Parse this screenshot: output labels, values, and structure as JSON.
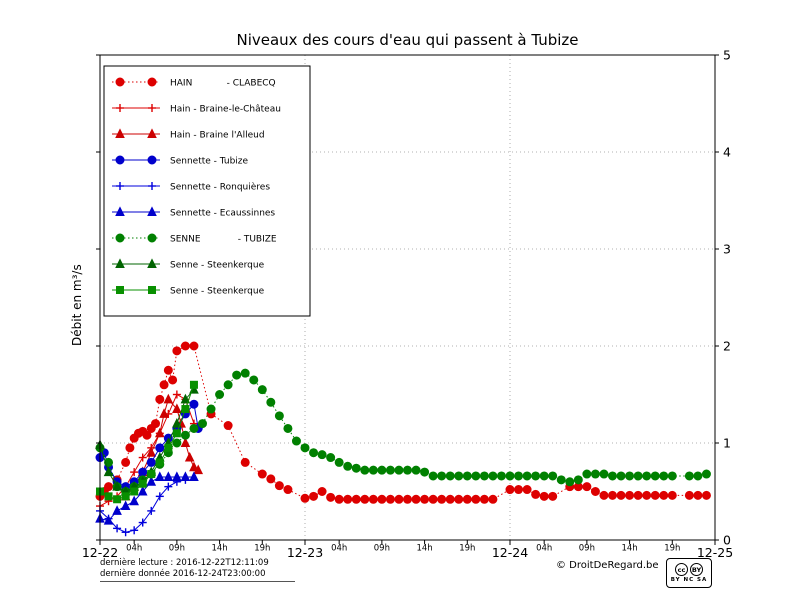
{
  "title": "Niveaux des cours d'eau qui passent à Tubize",
  "ylabel": "Débit en m³/s",
  "footer": {
    "last_read": "dernière lecture : 2016-12-22T12:11:09",
    "last_data": "dernière donnée  2016-12-24T23:00:00",
    "copyright": "© DroitDeRegard.be",
    "license": "CC BY-NC-SA",
    "license_cc": "cc",
    "license_by": "BY",
    "license_bottom": "BY NC SA"
  },
  "chart_data": {
    "type": "line",
    "title": "Niveaux des cours d'eau qui passent à Tubize",
    "xlabel": "",
    "ylabel": "Débit en m³/s",
    "x_unit": "hours since 2016-12-22 00:00",
    "xlim": [
      0,
      72
    ],
    "ylim": [
      0,
      5
    ],
    "grid": "dotted",
    "legend_position": "upper-left",
    "xgrid": [
      24,
      48
    ],
    "ygrid": [
      1,
      2,
      3,
      4
    ],
    "y_ticks": [
      {
        "v": 0,
        "label": "0"
      },
      {
        "v": 1,
        "label": "1"
      },
      {
        "v": 2,
        "label": "2"
      },
      {
        "v": 3,
        "label": "3"
      },
      {
        "v": 4,
        "label": "4"
      },
      {
        "v": 5,
        "label": "5"
      }
    ],
    "x_ticks": [
      {
        "t": 0,
        "label": "12-22",
        "major": true
      },
      {
        "t": 4,
        "label": "04h",
        "major": false
      },
      {
        "t": 9,
        "label": "09h",
        "major": false
      },
      {
        "t": 14,
        "label": "14h",
        "major": false
      },
      {
        "t": 19,
        "label": "19h",
        "major": false
      },
      {
        "t": 24,
        "label": "12-23",
        "major": true
      },
      {
        "t": 28,
        "label": "04h",
        "major": false
      },
      {
        "t": 33,
        "label": "09h",
        "major": false
      },
      {
        "t": 38,
        "label": "14h",
        "major": false
      },
      {
        "t": 43,
        "label": "19h",
        "major": false
      },
      {
        "t": 48,
        "label": "12-24",
        "major": true
      },
      {
        "t": 52,
        "label": "04h",
        "major": false
      },
      {
        "t": 57,
        "label": "09h",
        "major": false
      },
      {
        "t": 62,
        "label": "14h",
        "major": false
      },
      {
        "t": 67,
        "label": "19h",
        "major": false
      },
      {
        "t": 72,
        "label": "12-25",
        "major": true
      }
    ],
    "series": [
      {
        "name": "HAIN            - CLABECQ",
        "color": "#dd0000",
        "marker": "circle",
        "line": "dotted",
        "points": [
          [
            0,
            0.45
          ],
          [
            0.5,
            0.5
          ],
          [
            1,
            0.55
          ],
          [
            2,
            0.62
          ],
          [
            3,
            0.8
          ],
          [
            3.5,
            0.95
          ],
          [
            4,
            1.05
          ],
          [
            4.5,
            1.1
          ],
          [
            5,
            1.12
          ],
          [
            5.5,
            1.08
          ],
          [
            6,
            1.15
          ],
          [
            6.5,
            1.2
          ],
          [
            7,
            1.45
          ],
          [
            7.5,
            1.6
          ],
          [
            8,
            1.75
          ],
          [
            8.5,
            1.65
          ],
          [
            9,
            1.95
          ],
          [
            10,
            2.0
          ],
          [
            11,
            2.0
          ],
          [
            13,
            1.3
          ],
          [
            15,
            1.18
          ],
          [
            17,
            0.8
          ],
          [
            19,
            0.68
          ],
          [
            20,
            0.63
          ],
          [
            21,
            0.56
          ],
          [
            22,
            0.52
          ],
          [
            24,
            0.43
          ],
          [
            25,
            0.45
          ],
          [
            26,
            0.5
          ],
          [
            27,
            0.44
          ],
          [
            28,
            0.42
          ],
          [
            29,
            0.42
          ],
          [
            30,
            0.42
          ],
          [
            31,
            0.42
          ],
          [
            32,
            0.42
          ],
          [
            33,
            0.42
          ],
          [
            34,
            0.42
          ],
          [
            35,
            0.42
          ],
          [
            36,
            0.42
          ],
          [
            37,
            0.42
          ],
          [
            38,
            0.42
          ],
          [
            39,
            0.42
          ],
          [
            40,
            0.42
          ],
          [
            41,
            0.42
          ],
          [
            42,
            0.42
          ],
          [
            43,
            0.42
          ],
          [
            44,
            0.42
          ],
          [
            45,
            0.42
          ],
          [
            46,
            0.42
          ],
          [
            48,
            0.52
          ],
          [
            49,
            0.52
          ],
          [
            50,
            0.52
          ],
          [
            51,
            0.47
          ],
          [
            52,
            0.45
          ],
          [
            53,
            0.45
          ],
          [
            55,
            0.55
          ],
          [
            56,
            0.55
          ],
          [
            57,
            0.55
          ],
          [
            58,
            0.5
          ],
          [
            59,
            0.46
          ],
          [
            60,
            0.46
          ],
          [
            61,
            0.46
          ],
          [
            62,
            0.46
          ],
          [
            63,
            0.46
          ],
          [
            64,
            0.46
          ],
          [
            65,
            0.46
          ],
          [
            66,
            0.46
          ],
          [
            67,
            0.46
          ],
          [
            69,
            0.46
          ],
          [
            70,
            0.46
          ],
          [
            71,
            0.46
          ]
        ]
      },
      {
        "name": "Hain - Braine-le-Château",
        "color": "#dd0000",
        "marker": "plus",
        "line": "solid",
        "points": [
          [
            0,
            0.35
          ],
          [
            1,
            0.4
          ],
          [
            2,
            0.45
          ],
          [
            3,
            0.55
          ],
          [
            4,
            0.7
          ],
          [
            5,
            0.85
          ],
          [
            6,
            0.95
          ],
          [
            7,
            1.1
          ],
          [
            8,
            1.3
          ],
          [
            9,
            1.5
          ],
          [
            10,
            1.45
          ],
          [
            11,
            1.2
          ]
        ]
      },
      {
        "name": "Hain - Braine l'Alleud",
        "color": "#cc0000",
        "marker": "triangle",
        "line": "solid",
        "points": [
          [
            3,
            0.45
          ],
          [
            4,
            0.55
          ],
          [
            5,
            0.7
          ],
          [
            6,
            0.9
          ],
          [
            7,
            1.1
          ],
          [
            7.5,
            1.3
          ],
          [
            8,
            1.45
          ],
          [
            9,
            1.35
          ],
          [
            9.5,
            1.2
          ],
          [
            10,
            1.0
          ],
          [
            10.5,
            0.85
          ],
          [
            11,
            0.75
          ],
          [
            11.5,
            0.72
          ]
        ]
      },
      {
        "name": "Sennette - Tubize",
        "color": "#0000cc",
        "marker": "circle",
        "line": "solid",
        "points": [
          [
            0,
            0.85
          ],
          [
            0.5,
            0.9
          ],
          [
            1,
            0.75
          ],
          [
            2,
            0.6
          ],
          [
            3,
            0.55
          ],
          [
            4,
            0.6
          ],
          [
            5,
            0.7
          ],
          [
            6,
            0.8
          ],
          [
            7,
            0.95
          ],
          [
            8,
            1.05
          ],
          [
            9,
            1.15
          ],
          [
            10,
            1.3
          ],
          [
            11,
            1.4
          ],
          [
            11.5,
            1.15
          ]
        ]
      },
      {
        "name": "Sennette - Ronquières",
        "color": "#0000dd",
        "marker": "plus",
        "line": "solid",
        "points": [
          [
            0,
            0.3
          ],
          [
            1,
            0.22
          ],
          [
            2,
            0.12
          ],
          [
            3,
            0.08
          ],
          [
            4,
            0.1
          ],
          [
            5,
            0.18
          ],
          [
            6,
            0.3
          ],
          [
            7,
            0.45
          ],
          [
            8,
            0.55
          ],
          [
            9,
            0.6
          ],
          [
            10,
            0.62
          ]
        ]
      },
      {
        "name": "Sennette - Ecaussinnes",
        "color": "#0000cc",
        "marker": "triangle",
        "line": "solid",
        "points": [
          [
            0,
            0.22
          ],
          [
            1,
            0.2
          ],
          [
            2,
            0.3
          ],
          [
            3,
            0.35
          ],
          [
            4,
            0.4
          ],
          [
            5,
            0.5
          ],
          [
            6,
            0.6
          ],
          [
            7,
            0.65
          ],
          [
            8,
            0.65
          ],
          [
            9,
            0.65
          ],
          [
            10,
            0.65
          ],
          [
            11,
            0.65
          ]
        ]
      },
      {
        "name": "SENNE             - TUBIZE",
        "color": "#008000",
        "marker": "circle",
        "line": "dotted",
        "points": [
          [
            0,
            0.95
          ],
          [
            1,
            0.8
          ],
          [
            2,
            0.55
          ],
          [
            3,
            0.5
          ],
          [
            4,
            0.55
          ],
          [
            5,
            0.62
          ],
          [
            6,
            0.68
          ],
          [
            7,
            0.78
          ],
          [
            8,
            0.9
          ],
          [
            9,
            1.0
          ],
          [
            10,
            1.08
          ],
          [
            11,
            1.15
          ],
          [
            12,
            1.2
          ],
          [
            13,
            1.35
          ],
          [
            14,
            1.5
          ],
          [
            15,
            1.6
          ],
          [
            16,
            1.7
          ],
          [
            17,
            1.72
          ],
          [
            18,
            1.65
          ],
          [
            19,
            1.55
          ],
          [
            20,
            1.42
          ],
          [
            21,
            1.28
          ],
          [
            22,
            1.15
          ],
          [
            23,
            1.02
          ],
          [
            24,
            0.95
          ],
          [
            25,
            0.9
          ],
          [
            26,
            0.88
          ],
          [
            27,
            0.85
          ],
          [
            28,
            0.8
          ],
          [
            29,
            0.76
          ],
          [
            30,
            0.74
          ],
          [
            31,
            0.72
          ],
          [
            32,
            0.72
          ],
          [
            33,
            0.72
          ],
          [
            34,
            0.72
          ],
          [
            35,
            0.72
          ],
          [
            36,
            0.72
          ],
          [
            37,
            0.72
          ],
          [
            38,
            0.7
          ],
          [
            39,
            0.66
          ],
          [
            40,
            0.66
          ],
          [
            41,
            0.66
          ],
          [
            42,
            0.66
          ],
          [
            43,
            0.66
          ],
          [
            44,
            0.66
          ],
          [
            45,
            0.66
          ],
          [
            46,
            0.66
          ],
          [
            47,
            0.66
          ],
          [
            48,
            0.66
          ],
          [
            49,
            0.66
          ],
          [
            50,
            0.66
          ],
          [
            51,
            0.66
          ],
          [
            52,
            0.66
          ],
          [
            53,
            0.66
          ],
          [
            54,
            0.62
          ],
          [
            55,
            0.6
          ],
          [
            56,
            0.62
          ],
          [
            57,
            0.68
          ],
          [
            58,
            0.68
          ],
          [
            59,
            0.68
          ],
          [
            60,
            0.66
          ],
          [
            61,
            0.66
          ],
          [
            62,
            0.66
          ],
          [
            63,
            0.66
          ],
          [
            64,
            0.66
          ],
          [
            65,
            0.66
          ],
          [
            66,
            0.66
          ],
          [
            67,
            0.66
          ],
          [
            69,
            0.66
          ],
          [
            70,
            0.66
          ],
          [
            71,
            0.68
          ]
        ]
      },
      {
        "name": "Senne - Steenkerque",
        "color": "#006400",
        "marker": "triangle",
        "line": "solid",
        "points": [
          [
            0,
            0.98
          ],
          [
            1,
            0.7
          ],
          [
            2,
            0.55
          ],
          [
            3,
            0.5
          ],
          [
            4,
            0.55
          ],
          [
            5,
            0.6
          ],
          [
            6,
            0.7
          ],
          [
            7,
            0.85
          ],
          [
            8,
            1.0
          ],
          [
            9,
            1.2
          ],
          [
            10,
            1.45
          ],
          [
            11,
            1.55
          ]
        ]
      },
      {
        "name": "Senne - Steenkerque",
        "color": "#089000",
        "marker": "square",
        "line": "solid",
        "points": [
          [
            0,
            0.5
          ],
          [
            1,
            0.45
          ],
          [
            2,
            0.42
          ],
          [
            3,
            0.45
          ],
          [
            4,
            0.5
          ],
          [
            5,
            0.58
          ],
          [
            6,
            0.68
          ],
          [
            7,
            0.8
          ],
          [
            8,
            0.95
          ],
          [
            9,
            1.1
          ],
          [
            10,
            1.35
          ],
          [
            11,
            1.6
          ]
        ]
      }
    ]
  }
}
